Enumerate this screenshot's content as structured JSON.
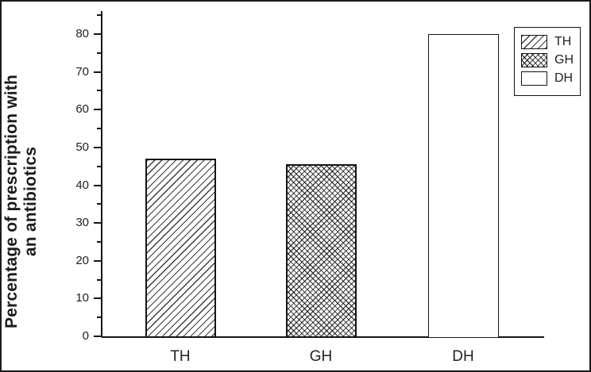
{
  "figure": {
    "background": "#ffffff",
    "border_color": "#1a1a1a",
    "line_color": "#161616",
    "text_color": "#222222"
  },
  "chart_data": {
    "type": "bar",
    "title": "",
    "ylabel_line1": "Percentage of prescription with",
    "ylabel_line2": "an antibiotics",
    "xlabel": "",
    "categories": [
      "TH",
      "GH",
      "DH"
    ],
    "values": [
      47,
      45.5,
      80
    ],
    "bar_patterns": [
      "diagonal-hatch",
      "crosshatch",
      "plain"
    ],
    "ylim": [
      0,
      86
    ],
    "yticks_major": [
      0,
      10,
      20,
      30,
      40,
      50,
      60,
      70,
      80
    ],
    "yticks_minor": [
      5,
      15,
      25,
      35,
      45,
      55,
      65,
      75,
      85
    ],
    "grid": false,
    "legend": {
      "position": "top-right",
      "entries": [
        {
          "label": "TH",
          "pattern": "diagonal-hatch"
        },
        {
          "label": "GH",
          "pattern": "crosshatch"
        },
        {
          "label": "DH",
          "pattern": "plain"
        }
      ]
    }
  }
}
